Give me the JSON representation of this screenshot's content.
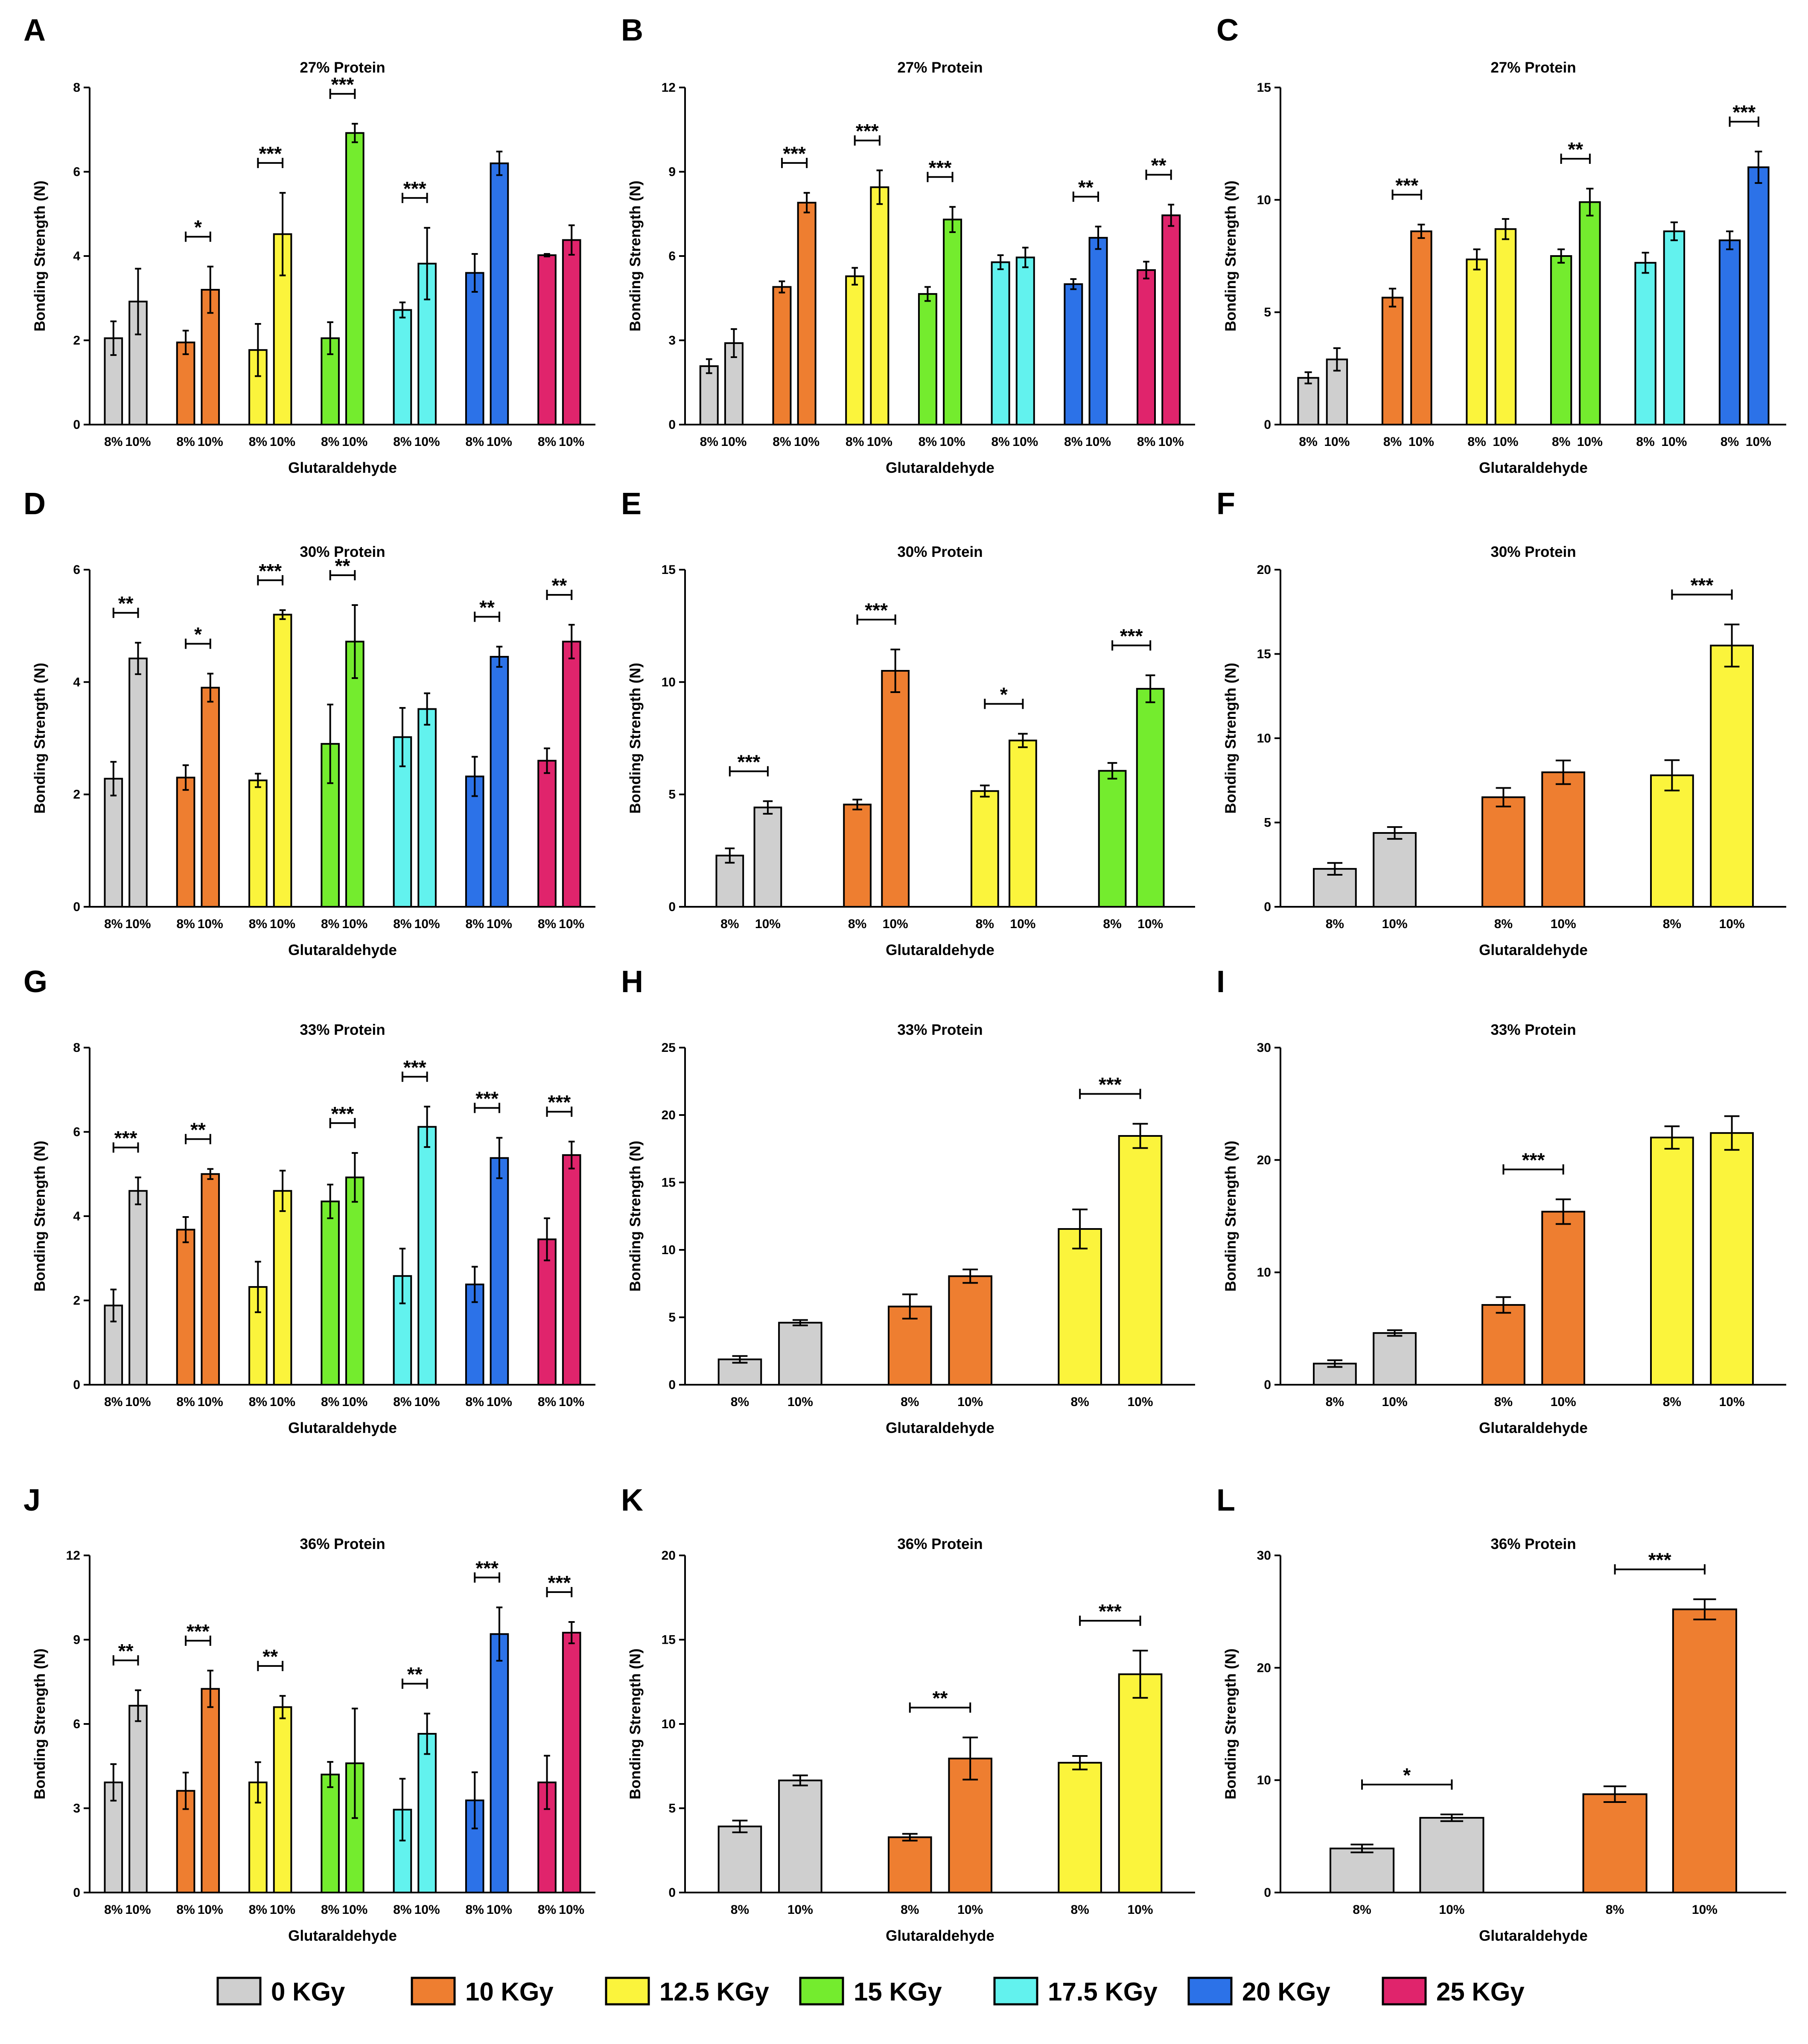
{
  "legend": [
    {
      "label": "0 KGy",
      "color": "#cfcfcf"
    },
    {
      "label": "10 KGy",
      "color": "#ee7e30"
    },
    {
      "label": "12.5 KGy",
      "color": "#fbf43c"
    },
    {
      "label": "15 KGy",
      "color": "#74ec2e"
    },
    {
      "label": "17.5 KGy",
      "color": "#62f2ee"
    },
    {
      "label": "20 KGy",
      "color": "#2c72e8"
    },
    {
      "label": "25 KGy",
      "color": "#e0246c"
    }
  ],
  "chart_data": [
    {
      "panel": "A",
      "type": "bar",
      "title": "27% Protein",
      "xlabel": "Glutaraldehyde",
      "ylabel": "Bonding Strength  (N)",
      "ylim": [
        0,
        8
      ],
      "yticks": [
        0,
        2,
        4,
        6,
        8
      ],
      "bar_labels": [
        "8%",
        "10%"
      ],
      "groups": [
        {
          "dose": "0 KGy",
          "values": [
            2.05,
            2.92
          ],
          "errors": [
            0.4,
            0.78
          ],
          "sig": ""
        },
        {
          "dose": "10 KGy",
          "values": [
            1.95,
            3.2
          ],
          "errors": [
            0.28,
            0.55
          ],
          "sig": "*"
        },
        {
          "dose": "12.5 KGy",
          "values": [
            1.77,
            4.52
          ],
          "errors": [
            0.62,
            0.98
          ],
          "sig": "***"
        },
        {
          "dose": "15 KGy",
          "values": [
            2.05,
            6.92
          ],
          "errors": [
            0.38,
            0.22
          ],
          "sig": "***"
        },
        {
          "dose": "17.5 KGy",
          "values": [
            2.72,
            3.82
          ],
          "errors": [
            0.18,
            0.85
          ],
          "sig": "***"
        },
        {
          "dose": "20 KGy",
          "values": [
            3.6,
            6.2
          ],
          "errors": [
            0.45,
            0.28
          ],
          "sig": ""
        },
        {
          "dose": "25 KGy",
          "values": [
            4.02,
            4.38
          ],
          "errors": [
            0.03,
            0.35
          ],
          "sig": ""
        }
      ]
    },
    {
      "panel": "B",
      "type": "bar",
      "title": "27% Protein",
      "xlabel": "Glutaraldehyde",
      "ylabel": "Bonding Strength (N)",
      "ylim": [
        0,
        12
      ],
      "yticks": [
        0,
        3,
        6,
        9,
        12
      ],
      "bar_labels": [
        "8%",
        "10%"
      ],
      "groups": [
        {
          "dose": "0 KGy",
          "values": [
            2.08,
            2.9
          ],
          "errors": [
            0.25,
            0.5
          ],
          "sig": ""
        },
        {
          "dose": "10 KGy",
          "values": [
            4.9,
            7.9
          ],
          "errors": [
            0.2,
            0.35
          ],
          "sig": "***"
        },
        {
          "dose": "12.5 KGy",
          "values": [
            5.28,
            8.45
          ],
          "errors": [
            0.3,
            0.6
          ],
          "sig": "***"
        },
        {
          "dose": "15 KGy",
          "values": [
            4.65,
            7.3
          ],
          "errors": [
            0.25,
            0.45
          ],
          "sig": "***"
        },
        {
          "dose": "17.5 KGy",
          "values": [
            5.78,
            5.95
          ],
          "errors": [
            0.25,
            0.35
          ],
          "sig": ""
        },
        {
          "dose": "20 KGy",
          "values": [
            5.0,
            6.65
          ],
          "errors": [
            0.18,
            0.4
          ],
          "sig": "**"
        },
        {
          "dose": "25 KGy",
          "values": [
            5.5,
            7.45
          ],
          "errors": [
            0.3,
            0.38
          ],
          "sig": "**"
        }
      ]
    },
    {
      "panel": "C",
      "type": "bar",
      "title": "27% Protein",
      "xlabel": "Glutaraldehyde",
      "ylabel": "Bonding Strength (N)",
      "ylim": [
        0,
        15
      ],
      "yticks": [
        0,
        5,
        10,
        15
      ],
      "bar_labels": [
        "8%",
        "10%"
      ],
      "groups": [
        {
          "dose": "0 KGy",
          "values": [
            2.08,
            2.9
          ],
          "errors": [
            0.25,
            0.5
          ],
          "sig": ""
        },
        {
          "dose": "10 KGy",
          "values": [
            5.65,
            8.6
          ],
          "errors": [
            0.4,
            0.3
          ],
          "sig": "***"
        },
        {
          "dose": "12.5 KGy",
          "values": [
            7.35,
            8.7
          ],
          "errors": [
            0.45,
            0.45
          ],
          "sig": ""
        },
        {
          "dose": "15 KGy",
          "values": [
            7.5,
            9.9
          ],
          "errors": [
            0.3,
            0.6
          ],
          "sig": "**"
        },
        {
          "dose": "17.5 KGy",
          "values": [
            7.2,
            8.6
          ],
          "errors": [
            0.45,
            0.4
          ],
          "sig": ""
        },
        {
          "dose": "20 KGy",
          "values": [
            8.2,
            11.45
          ],
          "errors": [
            0.4,
            0.7
          ],
          "sig": "***"
        }
      ]
    },
    {
      "panel": "D",
      "type": "bar",
      "title": "30% Protein",
      "xlabel": "Glutaraldehyde",
      "ylabel": "Bonding Strength (N)",
      "ylim": [
        0,
        6
      ],
      "yticks": [
        0,
        2,
        4,
        6
      ],
      "bar_labels": [
        "8%",
        "10%"
      ],
      "groups": [
        {
          "dose": "0 KGy",
          "values": [
            2.28,
            4.42
          ],
          "errors": [
            0.3,
            0.28
          ],
          "sig": "**"
        },
        {
          "dose": "10 KGy",
          "values": [
            2.3,
            3.9
          ],
          "errors": [
            0.22,
            0.25
          ],
          "sig": "*"
        },
        {
          "dose": "12.5 KGy",
          "values": [
            2.25,
            5.2
          ],
          "errors": [
            0.12,
            0.08
          ],
          "sig": "***"
        },
        {
          "dose": "15 KGy",
          "values": [
            2.9,
            4.72
          ],
          "errors": [
            0.7,
            0.65
          ],
          "sig": "**"
        },
        {
          "dose": "17.5 KGy",
          "values": [
            3.02,
            3.52
          ],
          "errors": [
            0.52,
            0.28
          ],
          "sig": ""
        },
        {
          "dose": "20 KGy",
          "values": [
            2.32,
            4.45
          ],
          "errors": [
            0.35,
            0.18
          ],
          "sig": "**"
        },
        {
          "dose": "25 KGy",
          "values": [
            2.6,
            4.72
          ],
          "errors": [
            0.22,
            0.3
          ],
          "sig": "**"
        }
      ]
    },
    {
      "panel": "E",
      "type": "bar",
      "title": "30% Protein",
      "xlabel": "Glutaraldehyde",
      "ylabel": "Bonding Strength (N)",
      "ylim": [
        0,
        15
      ],
      "yticks": [
        0,
        5,
        10,
        15
      ],
      "bar_labels": [
        "8%",
        "10%"
      ],
      "groups": [
        {
          "dose": "0 KGy",
          "values": [
            2.28,
            4.42
          ],
          "errors": [
            0.32,
            0.28
          ],
          "sig": "***"
        },
        {
          "dose": "10 KGy",
          "values": [
            4.55,
            10.5
          ],
          "errors": [
            0.22,
            0.95
          ],
          "sig": "***"
        },
        {
          "dose": "12.5 KGy",
          "values": [
            5.15,
            7.4
          ],
          "errors": [
            0.25,
            0.3
          ],
          "sig": "*"
        },
        {
          "dose": "15 KGy",
          "values": [
            6.05,
            9.7
          ],
          "errors": [
            0.35,
            0.6
          ],
          "sig": "***"
        }
      ]
    },
    {
      "panel": "F",
      "type": "bar",
      "title": "30% Protein",
      "xlabel": "Glutaraldehyde",
      "ylabel": "Bonding Strength (N)",
      "ylim": [
        0,
        20
      ],
      "yticks": [
        0,
        5,
        10,
        15,
        20
      ],
      "bar_labels": [
        "8%",
        "10%"
      ],
      "groups": [
        {
          "dose": "0 KGy",
          "values": [
            2.25,
            4.38
          ],
          "errors": [
            0.35,
            0.35
          ],
          "sig": ""
        },
        {
          "dose": "10 KGy",
          "values": [
            6.5,
            7.98
          ],
          "errors": [
            0.55,
            0.7
          ],
          "sig": ""
        },
        {
          "dose": "12.5 KGy",
          "values": [
            7.8,
            15.5
          ],
          "errors": [
            0.9,
            1.25
          ],
          "sig": "***"
        }
      ]
    },
    {
      "panel": "G",
      "type": "bar",
      "title": "33% Protein",
      "xlabel": "Glutaraldehyde",
      "ylabel": "Bonding Strength (N)",
      "ylim": [
        0,
        8
      ],
      "yticks": [
        0,
        2,
        4,
        6,
        8
      ],
      "bar_labels": [
        "8%",
        "10%"
      ],
      "groups": [
        {
          "dose": "0 KGy",
          "values": [
            1.88,
            4.6
          ],
          "errors": [
            0.38,
            0.32
          ],
          "sig": "***"
        },
        {
          "dose": "10 KGy",
          "values": [
            3.68,
            5.0
          ],
          "errors": [
            0.3,
            0.12
          ],
          "sig": "**"
        },
        {
          "dose": "12.5 KGy",
          "values": [
            2.32,
            4.6
          ],
          "errors": [
            0.6,
            0.48
          ],
          "sig": ""
        },
        {
          "dose": "15 KGy",
          "values": [
            4.35,
            4.92
          ],
          "errors": [
            0.4,
            0.58
          ],
          "sig": "***"
        },
        {
          "dose": "17.5 KGy",
          "values": [
            2.58,
            6.12
          ],
          "errors": [
            0.65,
            0.48
          ],
          "sig": "***"
        },
        {
          "dose": "20 KGy",
          "values": [
            2.38,
            5.38
          ],
          "errors": [
            0.42,
            0.48
          ],
          "sig": "***"
        },
        {
          "dose": "25 KGy",
          "values": [
            3.45,
            5.45
          ],
          "errors": [
            0.5,
            0.32
          ],
          "sig": "***"
        }
      ]
    },
    {
      "panel": "H",
      "type": "bar",
      "title": "33% Protein",
      "xlabel": "Glutaraldehyde",
      "ylabel": "Bonding Strength (N)",
      "ylim": [
        0,
        25
      ],
      "yticks": [
        0,
        5,
        10,
        15,
        20,
        25
      ],
      "bar_labels": [
        "8%",
        "10%"
      ],
      "groups": [
        {
          "dose": "0 KGy",
          "values": [
            1.88,
            4.6
          ],
          "errors": [
            0.25,
            0.2
          ],
          "sig": ""
        },
        {
          "dose": "10 KGy",
          "values": [
            5.8,
            8.05
          ],
          "errors": [
            0.9,
            0.5
          ],
          "sig": ""
        },
        {
          "dose": "12.5 KGy",
          "values": [
            11.55,
            18.45
          ],
          "errors": [
            1.45,
            0.9
          ],
          "sig": "***"
        }
      ]
    },
    {
      "panel": "I",
      "type": "bar",
      "title": "33% Protein",
      "xlabel": "Glutaraldehyde",
      "ylabel": "Bonding Strength (N)",
      "ylim": [
        0,
        30
      ],
      "yticks": [
        0,
        10,
        20,
        30
      ],
      "bar_labels": [
        "8%",
        "10%"
      ],
      "groups": [
        {
          "dose": "0 KGy",
          "values": [
            1.88,
            4.6
          ],
          "errors": [
            0.3,
            0.25
          ],
          "sig": ""
        },
        {
          "dose": "10 KGy",
          "values": [
            7.1,
            15.4
          ],
          "errors": [
            0.7,
            1.1
          ],
          "sig": "***"
        },
        {
          "dose": "12.5 KGy",
          "values": [
            22.0,
            22.4
          ],
          "errors": [
            1.0,
            1.5
          ],
          "sig": ""
        }
      ]
    },
    {
      "panel": "J",
      "type": "bar",
      "title": "36% Protein",
      "xlabel": "Glutaraldehyde",
      "ylabel": "Bonding Strength (N)",
      "ylim": [
        0,
        12
      ],
      "yticks": [
        0,
        3,
        6,
        9,
        12
      ],
      "bar_labels": [
        "8%",
        "10%"
      ],
      "groups": [
        {
          "dose": "0 KGy",
          "values": [
            3.92,
            6.65
          ],
          "errors": [
            0.65,
            0.55
          ],
          "sig": "**"
        },
        {
          "dose": "10 KGy",
          "values": [
            3.62,
            7.25
          ],
          "errors": [
            0.65,
            0.65
          ],
          "sig": "***"
        },
        {
          "dose": "12.5 KGy",
          "values": [
            3.92,
            6.6
          ],
          "errors": [
            0.72,
            0.4
          ],
          "sig": "**"
        },
        {
          "dose": "15 KGy",
          "values": [
            4.2,
            4.6
          ],
          "errors": [
            0.45,
            1.95
          ],
          "sig": ""
        },
        {
          "dose": "17.5 KGy",
          "values": [
            2.95,
            5.65
          ],
          "errors": [
            1.1,
            0.72
          ],
          "sig": "**"
        },
        {
          "dose": "20 KGy",
          "values": [
            3.28,
            9.2
          ],
          "errors": [
            1.0,
            0.95
          ],
          "sig": "***"
        },
        {
          "dose": "25 KGy",
          "values": [
            3.92,
            9.25
          ],
          "errors": [
            0.95,
            0.38
          ],
          "sig": "***"
        }
      ]
    },
    {
      "panel": "K",
      "type": "bar",
      "title": "36% Protein",
      "xlabel": "Glutaraldehyde",
      "ylabel": "Bonding Strength (N)",
      "ylim": [
        0,
        20
      ],
      "yticks": [
        0,
        5,
        10,
        15,
        20
      ],
      "bar_labels": [
        "8%",
        "10%"
      ],
      "groups": [
        {
          "dose": "0 KGy",
          "values": [
            3.92,
            6.65
          ],
          "errors": [
            0.35,
            0.3
          ],
          "sig": ""
        },
        {
          "dose": "10 KGy",
          "values": [
            3.28,
            7.95
          ],
          "errors": [
            0.2,
            1.25
          ],
          "sig": "**"
        },
        {
          "dose": "12.5 KGy",
          "values": [
            7.7,
            12.95
          ],
          "errors": [
            0.4,
            1.4
          ],
          "sig": "***"
        }
      ]
    },
    {
      "panel": "L",
      "type": "bar",
      "title": "36% Protein",
      "xlabel": "Glutaraldehyde",
      "ylabel": "Bonding Strength (N)",
      "ylim": [
        0,
        30
      ],
      "yticks": [
        0,
        10,
        20,
        30
      ],
      "bar_labels": [
        "8%",
        "10%"
      ],
      "groups": [
        {
          "dose": "0 KGy",
          "values": [
            3.92,
            6.65
          ],
          "errors": [
            0.35,
            0.3
          ],
          "sig": "*"
        },
        {
          "dose": "10 KGy",
          "values": [
            8.75,
            25.2
          ],
          "errors": [
            0.7,
            0.9
          ],
          "sig": "***"
        }
      ]
    }
  ]
}
